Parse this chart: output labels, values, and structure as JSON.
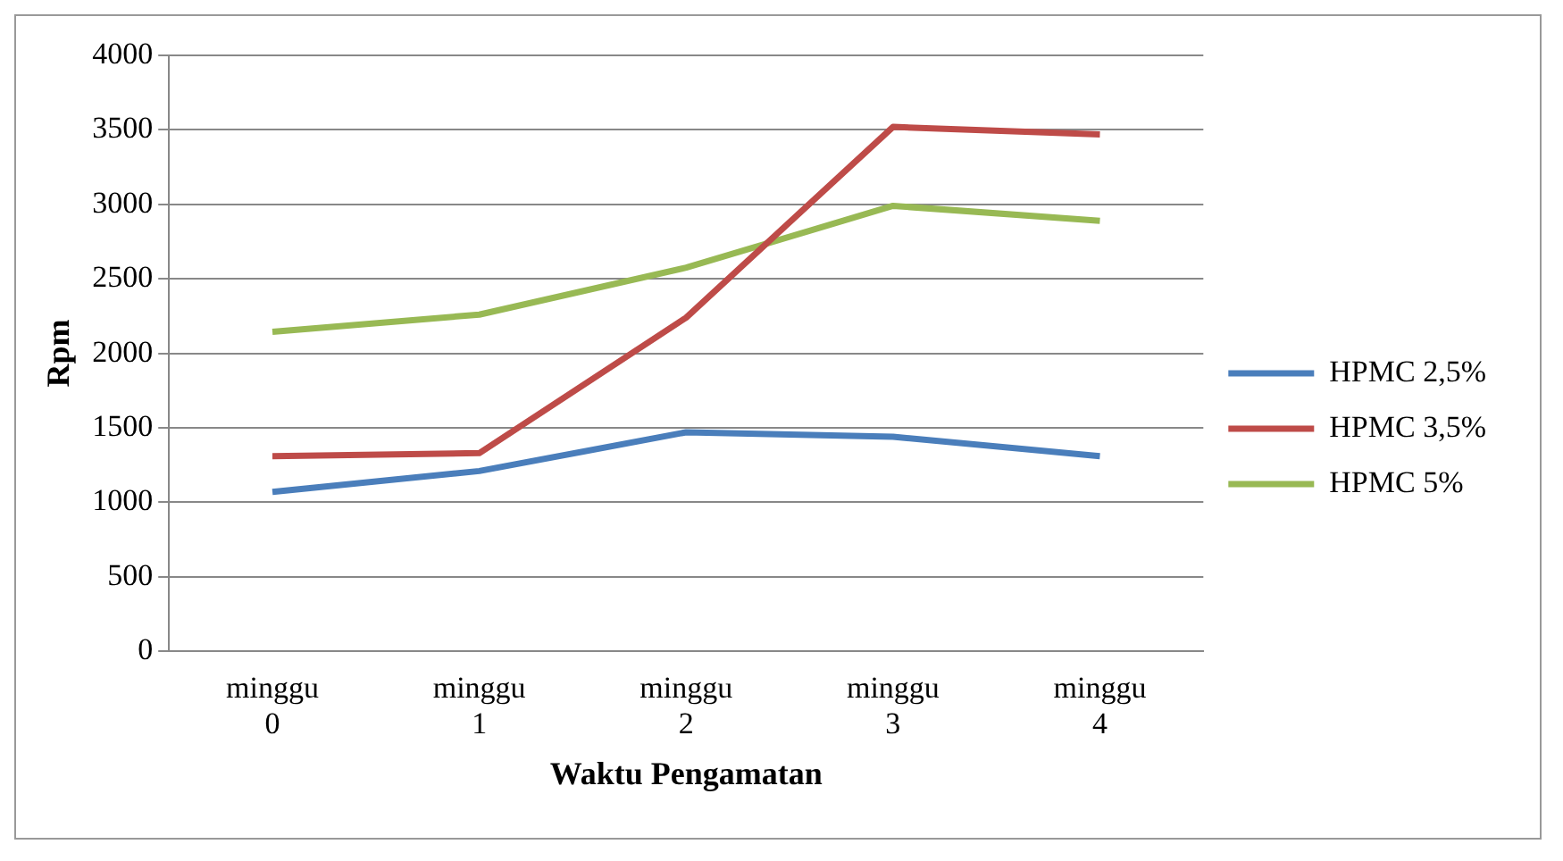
{
  "chart_data": {
    "type": "line",
    "xlabel": "Waktu Pengamatan",
    "ylabel": "Rpm",
    "categories": [
      "minggu 0",
      "minggu 1",
      "minggu 2",
      "minggu 3",
      "minggu 4"
    ],
    "series": [
      {
        "name": "HPMC 2,5%",
        "color": "#4a7ebb",
        "values": [
          1070,
          1210,
          1470,
          1440,
          1310
        ]
      },
      {
        "name": "HPMC 3,5%",
        "color": "#be4b48",
        "values": [
          1310,
          1330,
          2240,
          3520,
          3470
        ]
      },
      {
        "name": "HPMC 5%",
        "color": "#98b954",
        "values": [
          2145,
          2260,
          2575,
          2990,
          2890
        ]
      }
    ],
    "ylim": [
      0,
      4000
    ],
    "yticks": [
      0,
      500,
      1000,
      1500,
      2000,
      2500,
      3000,
      3500,
      4000
    ],
    "grid": "y",
    "legend": "right",
    "marker": "none",
    "line_style": "solid"
  }
}
